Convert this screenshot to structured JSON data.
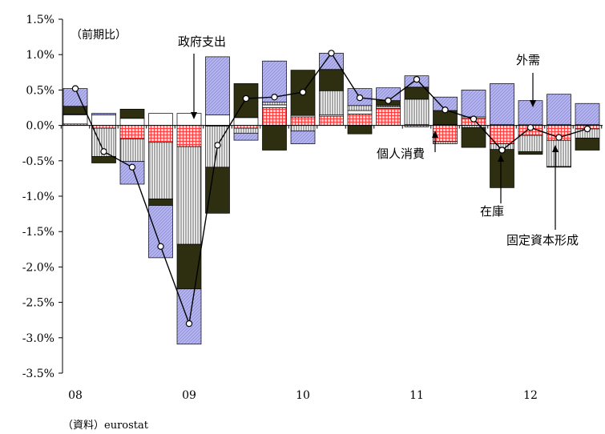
{
  "chart_data": {
    "type": "bar",
    "stacked": true,
    "unit_label": "（前期比）",
    "source_label": "（資料）eurostat",
    "y_range": [
      -3.5,
      1.5
    ],
    "y_ticks": [
      1.5,
      1.0,
      0.5,
      0.0,
      -0.5,
      -1.0,
      -1.5,
      -2.0,
      -2.5,
      -3.0,
      -3.5
    ],
    "y_tick_labels": [
      "1.5%",
      "1.0%",
      "0.5%",
      "0.0%",
      "-0.5%",
      "-1.0%",
      "-1.5%",
      "-2.0%",
      "-2.5%",
      "-3.0%",
      "-3.5%"
    ],
    "x_tick_labels": [
      "08",
      "09",
      "10",
      "11",
      "12"
    ],
    "x": [
      "2008Q1",
      "2008Q2",
      "2008Q3",
      "2008Q4",
      "2009Q1",
      "2009Q2",
      "2009Q3",
      "2009Q4",
      "2010Q1",
      "2010Q2",
      "2010Q3",
      "2010Q4",
      "2011Q1",
      "2011Q2",
      "2011Q3",
      "2011Q4",
      "2012Q1",
      "2012Q2",
      "2012Q3"
    ],
    "series": [
      {
        "name": "個人消費",
        "color": "#ff8a8a",
        "pattern": "grid",
        "values": [
          0.02,
          -0.04,
          -0.19,
          -0.24,
          -0.3,
          -0.01,
          -0.04,
          0.25,
          0.12,
          0.13,
          0.16,
          0.24,
          -0.02,
          -0.23,
          0.1,
          -0.26,
          -0.14,
          -0.21,
          -0.05
        ]
      },
      {
        "name": "政府支出",
        "color": "#ffffff",
        "pattern": "plain",
        "values": [
          0.13,
          0.15,
          0.1,
          0.17,
          0.17,
          0.15,
          0.11,
          0.04,
          0.02,
          0.02,
          0.05,
          0.02,
          0.01,
          0.01,
          0.02,
          0.01,
          0.01,
          0.01,
          0.01
        ]
      },
      {
        "name": "固定資本形成",
        "color": "#000000",
        "pattern": "vlines",
        "values": [
          0.01,
          -0.4,
          -0.32,
          -0.8,
          -1.38,
          -0.58,
          -0.07,
          0.04,
          -0.08,
          0.34,
          0.07,
          0.02,
          0.36,
          -0.03,
          -0.03,
          -0.08,
          -0.23,
          -0.37,
          -0.13
        ]
      },
      {
        "name": "在庫",
        "color": "#2e2e10",
        "pattern": "solid",
        "values": [
          0.11,
          -0.09,
          0.13,
          -0.09,
          -0.63,
          -0.65,
          0.48,
          -0.35,
          0.64,
          0.3,
          -0.12,
          0.07,
          0.17,
          0.2,
          -0.28,
          -0.54,
          -0.04,
          -0.01,
          -0.17
        ]
      },
      {
        "name": "外需",
        "color": "#b4b4ee",
        "pattern": "diag",
        "values": [
          0.25,
          0.02,
          -0.32,
          -0.74,
          -0.78,
          0.82,
          -0.1,
          0.58,
          -0.18,
          0.23,
          0.24,
          0.18,
          0.16,
          0.19,
          0.38,
          0.58,
          0.34,
          0.43,
          0.3
        ]
      }
    ],
    "gdp_line": {
      "values": [
        0.52,
        -0.37,
        -0.59,
        -1.71,
        -2.8,
        -0.28,
        0.38,
        0.4,
        0.47,
        1.02,
        0.39,
        0.35,
        0.65,
        0.22,
        0.09,
        -0.35,
        -0.03,
        -0.17,
        -0.05
      ]
    },
    "annotations": [
      {
        "id": "seifu",
        "text": "政府支出"
      },
      {
        "id": "gaiju",
        "text": "外需"
      },
      {
        "id": "kojin",
        "text": "個人消費"
      },
      {
        "id": "zaiko",
        "text": "在庫"
      },
      {
        "id": "kotei",
        "text": "固定資本形成"
      }
    ]
  }
}
